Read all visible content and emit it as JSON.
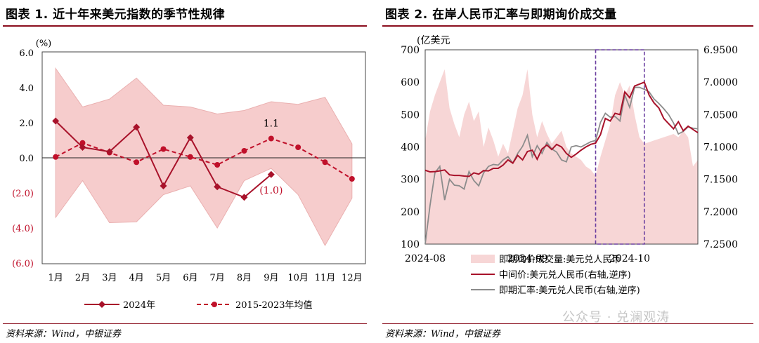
{
  "left_panel": {
    "title": "图表 1. 近十年来美元指数的季节性规律",
    "source": "资料来源：Wind，中银证券"
  },
  "right_panel": {
    "title": "图表 2. 在岸人民币汇率与即期询价成交量",
    "source": "资料来源：Wind，中银证券"
  },
  "watermark": "公众号 · 兑澜观涛",
  "colors": {
    "accent": "#8b0e1e",
    "line_2024": "#a8122a",
    "line_avg": "#c0102a",
    "band": "#f6cccc",
    "band_edge": "#eab0b0",
    "volume": "#f7d6d6",
    "mid": "#a8122a",
    "spot": "#8c8c8c",
    "box": "#6b3fa0"
  },
  "chart_data": [
    {
      "type": "line",
      "title": "近十年来美元指数的季节性规律",
      "unit_label": "(%)",
      "categories": [
        "1月",
        "2月",
        "3月",
        "4月",
        "5月",
        "6月",
        "7月",
        "8月",
        "9月",
        "10月",
        "11月",
        "12月"
      ],
      "yticks": [
        "6.0",
        "4.0",
        "2.0",
        "0.0",
        "(2.0)",
        "(4.0)",
        "(6.0)"
      ],
      "ylim": [
        -6,
        6
      ],
      "range_band": {
        "upper": [
          5.1,
          2.9,
          3.35,
          4.55,
          3.0,
          2.9,
          2.5,
          2.7,
          3.2,
          3.05,
          3.45,
          0.8
        ],
        "lower": [
          -3.4,
          -1.3,
          -3.7,
          -3.65,
          -2.1,
          -1.6,
          -4.0,
          -1.3,
          -0.6,
          -2.1,
          -5.0,
          -2.3
        ]
      },
      "series": [
        {
          "name": "2024年",
          "style": "solid",
          "values": [
            2.1,
            0.6,
            0.35,
            1.75,
            -1.6,
            1.15,
            -1.65,
            -2.25,
            -0.95,
            null,
            null,
            null
          ]
        },
        {
          "name": "2015-2023年均值",
          "style": "dashed",
          "values": [
            0.05,
            0.85,
            0.3,
            -0.25,
            0.5,
            0.05,
            -0.4,
            0.4,
            1.1,
            0.6,
            -0.25,
            -1.2
          ]
        }
      ],
      "annotations": [
        {
          "text": "1.1",
          "series": "2015-2023年均值",
          "category": "9月"
        },
        {
          "text": "(1.0)",
          "series": "2024年",
          "category": "9月"
        }
      ],
      "legend_position": "bottom",
      "grid": false
    },
    {
      "type": "area",
      "title": "在岸人民币汇率与即期询价成交量",
      "left_axis_label": "(亿美元",
      "ylim_left": [
        100,
        700
      ],
      "yticks_left": [
        "700",
        "600",
        "500",
        "400",
        "300",
        "200",
        "100"
      ],
      "ylim_right_inverted": [
        6.95,
        7.25
      ],
      "yticks_right": [
        "6.9500",
        "7.0000",
        "7.0500",
        "7.1000",
        "7.1500",
        "7.2000",
        "7.2500"
      ],
      "x_labels": [
        {
          "label": "2024-08",
          "index": 0
        },
        {
          "label": "2024-09",
          "index": 21
        },
        {
          "label": "2024-10",
          "index": 42
        }
      ],
      "n_points": 57,
      "highlight_range": {
        "start": 35,
        "end": 45
      },
      "series": [
        {
          "name": "即期询价成交量:美元兑人民币",
          "kind": "area",
          "axis": "left",
          "values": [
            420,
            510,
            560,
            600,
            640,
            520,
            470,
            430,
            500,
            540,
            480,
            510,
            400,
            460,
            420,
            370,
            410,
            380,
            450,
            520,
            560,
            640,
            500,
            430,
            480,
            440,
            410,
            430,
            450,
            400,
            380,
            370,
            360,
            340,
            330,
            310,
            370,
            420,
            470,
            560,
            600,
            560,
            590,
            500,
            430,
            410,
            415,
            420,
            425,
            430,
            435,
            440,
            430,
            450,
            430,
            340,
            360
          ]
        },
        {
          "name": "中间价:美元兑人民币(右轴,逆序)",
          "kind": "line",
          "axis": "right",
          "values": [
            7.136,
            7.1385,
            7.138,
            7.137,
            7.1355,
            7.143,
            7.144,
            7.144,
            7.145,
            7.1455,
            7.14,
            7.142,
            7.1365,
            7.137,
            7.133,
            7.133,
            7.128,
            7.12,
            7.125,
            7.113,
            7.12,
            7.107,
            7.105,
            7.119,
            7.103,
            7.097,
            7.104,
            7.096,
            7.1,
            7.11,
            7.116,
            7.111,
            7.105,
            7.1,
            7.096,
            7.094,
            7.081,
            7.056,
            7.06,
            7.048,
            7.05,
            7.015,
            7.024,
            7.006,
            7.003,
            7.0,
            7.02,
            7.032,
            7.04,
            7.056,
            7.064,
            7.072,
            7.061,
            7.075,
            7.068,
            7.073,
            7.078
          ]
        },
        {
          "name": "即期汇率:美元兑人民币(右轴,逆序)",
          "kind": "line",
          "axis": "right",
          "values": [
            7.25,
            7.19,
            7.14,
            7.13,
            7.182,
            7.15,
            7.159,
            7.16,
            7.165,
            7.138,
            7.152,
            7.16,
            7.14,
            7.13,
            7.127,
            7.128,
            7.12,
            7.115,
            7.125,
            7.11,
            7.099,
            7.082,
            7.115,
            7.098,
            7.11,
            7.093,
            7.103,
            7.108,
            7.12,
            7.123,
            7.1,
            7.098,
            7.1,
            7.096,
            7.092,
            7.09,
            7.062,
            7.048,
            7.054,
            7.053,
            7.06,
            7.02,
            7.039,
            7.008,
            7.008,
            7.011,
            7.015,
            7.026,
            7.033,
            7.041,
            7.05,
            7.063,
            7.08,
            7.076,
            7.069,
            7.071,
            7.072
          ]
        }
      ],
      "legend_position": "bottom",
      "grid": false
    }
  ],
  "legend_left": {
    "items": [
      {
        "label": "2024年"
      },
      {
        "label": "2015-2023年均值"
      }
    ]
  },
  "legend_right": {
    "items": [
      {
        "label": "即期询价成交量:美元兑人民币"
      },
      {
        "label": "中间价:美元兑人民币(右轴,逆序)"
      },
      {
        "label": "即期汇率:美元兑人民币(右轴,逆序)"
      }
    ]
  }
}
